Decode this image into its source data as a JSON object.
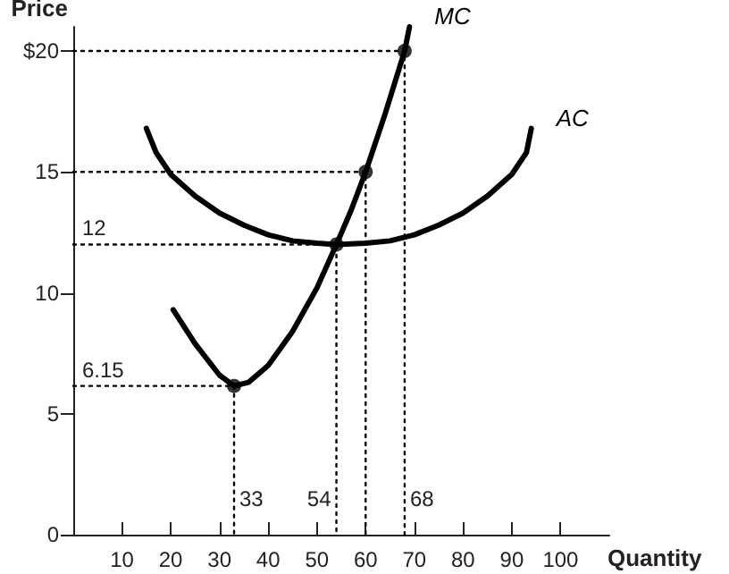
{
  "chart_data": {
    "type": "line",
    "xlabel": "Quantity",
    "ylabel": "Price",
    "xlim": [
      0,
      110
    ],
    "xticks": [
      10,
      20,
      30,
      40,
      50,
      60,
      70,
      80,
      90,
      100
    ],
    "ylim": [
      0,
      21
    ],
    "yticks": [
      0,
      5,
      10,
      15,
      {
        "value": 20,
        "label": "$20"
      }
    ],
    "grid": false,
    "legend": false,
    "marker": "none",
    "line_style": "solid",
    "series": [
      {
        "name": "MC",
        "color": "#000000",
        "x": [
          20.5,
          25,
          30,
          33,
          36,
          40,
          45,
          50,
          54,
          57,
          60,
          64,
          68,
          69
        ],
        "values": [
          9.3,
          7.9,
          6.6,
          6.15,
          6.3,
          7,
          8.4,
          10.2,
          12,
          13.4,
          15,
          17.4,
          20,
          21
        ]
      },
      {
        "name": "AC",
        "color": "#000000",
        "x": [
          15,
          17,
          20,
          25,
          30,
          35,
          40,
          45,
          50,
          54,
          60,
          65,
          70,
          75,
          80,
          85,
          90,
          93,
          94
        ],
        "values": [
          16.8,
          15.8,
          14.9,
          14,
          13.3,
          12.8,
          12.4,
          12.15,
          12.05,
          12,
          12.05,
          12.15,
          12.4,
          12.8,
          13.3,
          14,
          14.9,
          15.8,
          16.8
        ]
      },
      {
        "type": "scatter",
        "marker": "circle",
        "color": "#000000",
        "x": [
          33,
          54,
          60,
          68
        ],
        "values": [
          6.15,
          12,
          15,
          20
        ]
      },
      {
        "line_style": "dotted",
        "color": "#000000",
        "x": [
          0,
          33,
          33
        ],
        "values": [
          6.15,
          6.15,
          0
        ]
      },
      {
        "line_style": "dotted",
        "color": "#000000",
        "x": [
          0,
          54,
          54
        ],
        "values": [
          12,
          12,
          0
        ]
      },
      {
        "line_style": "dotted",
        "color": "#000000",
        "x": [
          0,
          60,
          60
        ],
        "values": [
          15,
          15,
          0
        ]
      },
      {
        "line_style": "dotted",
        "color": "#000000",
        "x": [
          0,
          68,
          68
        ],
        "values": [
          20,
          20,
          0
        ]
      }
    ],
    "annotations": [
      {
        "text": "33",
        "x": 33,
        "y": 0
      },
      {
        "text": "54",
        "x": 54,
        "y": 0
      },
      {
        "text": "68",
        "x": 68,
        "y": 0
      },
      {
        "text": "12",
        "x": 0,
        "y": 12
      },
      {
        "text": "6.15",
        "x": 0,
        "y": 6.15
      }
    ]
  }
}
